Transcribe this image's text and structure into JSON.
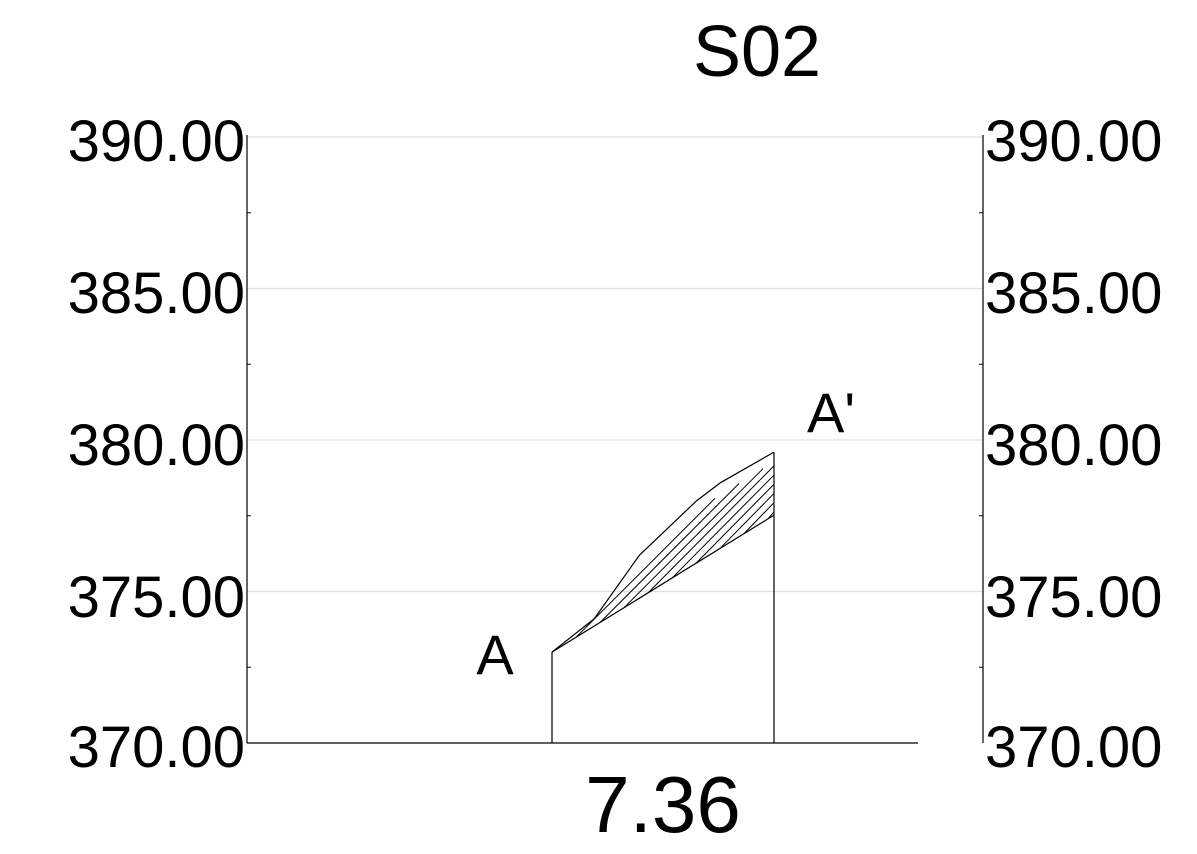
{
  "section": {
    "title": "S02",
    "length_label": "7.36",
    "point_start_label": "A",
    "point_end_label": "A'"
  },
  "axis": {
    "ymin": 370,
    "ymax": 390,
    "major_step": 5,
    "minor_step": 2.5,
    "tick_labels": [
      "390.00",
      "385.00",
      "380.00",
      "375.00",
      "370.00"
    ]
  },
  "chart_data": {
    "type": "line",
    "title": "S02",
    "xlabel": "7.36",
    "ylabel": "",
    "ylim": [
      370,
      390
    ],
    "grid": true,
    "series": [
      {
        "name": "",
        "x": [
          0,
          1.4,
          2.9,
          4.8,
          5.6,
          7.36
        ],
        "values": [
          373.0,
          374.1,
          376.2,
          378.0,
          378.6,
          379.6
        ]
      }
    ]
  },
  "colors": {
    "line": "#000000",
    "grid": "#e0e0e0",
    "background": "#ffffff"
  }
}
